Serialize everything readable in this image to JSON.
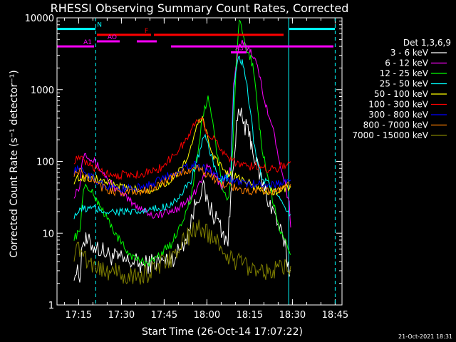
{
  "chart_data": {
    "type": "line",
    "title": "RHESSI Observing Summary Count Rates, Corrected",
    "xlabel": "Start Time (26-Oct-14 17:07:22)",
    "ylabel": "Corrected Count Rate (s⁻¹ detector⁻¹)",
    "x_unit": "minutes after 17:07:22",
    "xlim": [
      0,
      100
    ],
    "ylim": [
      1,
      10000
    ],
    "yscale": "log",
    "x_ticks": [
      {
        "v": 7.6,
        "label": "17:15"
      },
      {
        "v": 22.6,
        "label": "17:30"
      },
      {
        "v": 37.6,
        "label": "17:45"
      },
      {
        "v": 52.6,
        "label": "18:00"
      },
      {
        "v": 67.6,
        "label": "18:15"
      },
      {
        "v": 82.6,
        "label": "18:30"
      },
      {
        "v": 97.6,
        "label": "18:45"
      }
    ],
    "y_ticks": [
      {
        "v": 1,
        "label": "1"
      },
      {
        "v": 10,
        "label": "10"
      },
      {
        "v": 100,
        "label": "100"
      },
      {
        "v": 1000,
        "label": "1000"
      },
      {
        "v": 10000,
        "label": "10000"
      }
    ],
    "legend_title": "Det 1,3,6,9",
    "legend_position": "right",
    "series": [
      {
        "name": "3 - 6 keV",
        "color": "#ffffff",
        "x": [
          6,
          8,
          9,
          12,
          15,
          18,
          21,
          24,
          27,
          30,
          34,
          38,
          42,
          46,
          49,
          51,
          53,
          55,
          57,
          58,
          60,
          61,
          62,
          63,
          64,
          65,
          66,
          67,
          68,
          69,
          70,
          71,
          72,
          74,
          76,
          78,
          80,
          81.5,
          82
        ],
        "y": [
          3,
          2.5,
          8,
          7,
          6,
          5,
          4.5,
          4,
          4,
          3.5,
          4,
          4,
          5,
          10,
          30,
          45,
          25,
          18,
          14,
          10,
          8,
          30,
          120,
          300,
          450,
          400,
          300,
          250,
          200,
          130,
          90,
          70,
          50,
          30,
          20,
          12,
          6,
          3,
          3
        ]
      },
      {
        "name": "6 - 12 keV",
        "color": "#ff00ff",
        "x": [
          6,
          8,
          9,
          10,
          12,
          15,
          18,
          21,
          24,
          27,
          30,
          33,
          36,
          40,
          44,
          47,
          49,
          51,
          53,
          55,
          57,
          58,
          59,
          60,
          61,
          62,
          63,
          64,
          65,
          66,
          67,
          68,
          69,
          70,
          71,
          72,
          74,
          76,
          78,
          80,
          81.5,
          82
        ],
        "y": [
          35,
          45,
          120,
          135,
          110,
          80,
          55,
          40,
          32,
          25,
          22,
          18,
          18,
          20,
          25,
          30,
          40,
          60,
          85,
          65,
          50,
          45,
          60,
          70,
          80,
          1200,
          2500,
          3800,
          4500,
          4000,
          3700,
          3500,
          3000,
          2200,
          1600,
          1000,
          500,
          250,
          110,
          50,
          25,
          12
        ]
      },
      {
        "name": "12 - 25 keV",
        "color": "#00ff00",
        "x": [
          6,
          8,
          9,
          10,
          12,
          15,
          18,
          21,
          24,
          27,
          30,
          33,
          36,
          40,
          44,
          47,
          49,
          51,
          53,
          55,
          56,
          57,
          58,
          59,
          60,
          61,
          62,
          63,
          64,
          65,
          66,
          67,
          68,
          69,
          70,
          71,
          72,
          74,
          76,
          78,
          80,
          81.5,
          82
        ],
        "y": [
          9,
          10,
          35,
          45,
          38,
          25,
          15,
          9,
          6,
          4.5,
          4,
          4,
          5,
          7,
          15,
          30,
          100,
          400,
          800,
          300,
          140,
          80,
          40,
          35,
          30,
          50,
          300,
          3000,
          9000,
          6000,
          4000,
          3300,
          2800,
          1800,
          800,
          300,
          150,
          60,
          25,
          12,
          8,
          5,
          5
        ]
      },
      {
        "name": "25 - 50 keV",
        "color": "#00ffff",
        "x": [
          6,
          8,
          9,
          12,
          15,
          18,
          21,
          24,
          27,
          30,
          33,
          36,
          40,
          44,
          47,
          49,
          51,
          52,
          53,
          55,
          57,
          58,
          59,
          60,
          61,
          62,
          63,
          64,
          65,
          66,
          67,
          68,
          69,
          70,
          72,
          74,
          76,
          78,
          80,
          81.5,
          82
        ],
        "y": [
          18,
          20,
          22,
          22,
          21,
          20,
          20,
          20,
          19,
          20,
          21,
          22,
          26,
          35,
          55,
          100,
          180,
          220,
          160,
          90,
          60,
          55,
          55,
          60,
          70,
          900,
          2200,
          2800,
          2300,
          1500,
          900,
          450,
          200,
          110,
          60,
          50,
          40,
          30,
          20,
          18,
          18
        ]
      },
      {
        "name": "50 - 100 keV",
        "color": "#ffff00",
        "x": [
          6,
          8,
          9,
          12,
          15,
          18,
          21,
          24,
          27,
          30,
          33,
          36,
          40,
          44,
          47,
          49,
          51,
          52,
          53,
          55,
          57,
          59,
          61,
          63,
          65,
          67,
          69,
          71,
          74,
          77,
          80,
          82
        ],
        "y": [
          55,
          60,
          60,
          60,
          55,
          50,
          45,
          42,
          40,
          40,
          40,
          45,
          55,
          80,
          150,
          300,
          450,
          280,
          200,
          120,
          90,
          75,
          65,
          60,
          55,
          50,
          45,
          40,
          38,
          38,
          42,
          45
        ]
      },
      {
        "name": "100 - 300 keV",
        "color": "#ff0000",
        "x": [
          6,
          8,
          10,
          12,
          15,
          18,
          21,
          24,
          27,
          30,
          33,
          36,
          40,
          44,
          47,
          49,
          51,
          52,
          53,
          55,
          57,
          59,
          61,
          63,
          65,
          67,
          69,
          71,
          74,
          77,
          80,
          82
        ],
        "y": [
          105,
          110,
          95,
          85,
          75,
          68,
          65,
          65,
          65,
          68,
          72,
          80,
          110,
          170,
          250,
          400,
          380,
          300,
          250,
          200,
          160,
          130,
          110,
          95,
          90,
          85,
          85,
          85,
          80,
          80,
          90,
          100
        ]
      },
      {
        "name": "300 - 800 keV",
        "color": "#0000ff",
        "x": [
          6,
          8,
          10,
          12,
          15,
          18,
          21,
          24,
          27,
          30,
          33,
          36,
          40,
          44,
          47,
          49,
          51,
          53,
          55,
          57,
          59,
          61,
          63,
          65,
          67,
          69,
          71,
          74,
          77,
          80,
          82
        ],
        "y": [
          75,
          78,
          70,
          60,
          50,
          45,
          42,
          42,
          42,
          44,
          48,
          55,
          65,
          80,
          90,
          88,
          82,
          75,
          68,
          62,
          58,
          55,
          52,
          50,
          48,
          48,
          48,
          48,
          48,
          52,
          55
        ]
      },
      {
        "name": "800 - 7000 keV",
        "color": "#ff8000",
        "x": [
          6,
          8,
          10,
          12,
          15,
          18,
          21,
          24,
          27,
          30,
          33,
          36,
          40,
          44,
          47,
          49,
          51,
          53,
          55,
          57,
          59,
          61,
          63,
          65,
          67,
          69,
          71,
          74,
          77,
          80,
          82
        ],
        "y": [
          70,
          72,
          62,
          55,
          45,
          40,
          38,
          37,
          37,
          38,
          42,
          48,
          58,
          70,
          80,
          78,
          72,
          65,
          58,
          52,
          48,
          45,
          42,
          40,
          38,
          38,
          38,
          38,
          40,
          42,
          48
        ]
      },
      {
        "name": "7000 - 15000 keV",
        "color": "#808000",
        "x": [
          6,
          8,
          10,
          12,
          15,
          18,
          21,
          24,
          27,
          30,
          33,
          36,
          40,
          44,
          47,
          49,
          51,
          53,
          55,
          57,
          59,
          61,
          63,
          65,
          67,
          69,
          71,
          74,
          77,
          80,
          82
        ],
        "y": [
          5.5,
          6,
          4.5,
          4,
          3.2,
          3,
          2.8,
          2.5,
          2.5,
          2.5,
          3,
          3.5,
          4.5,
          7,
          10,
          12,
          11,
          10,
          9,
          7,
          5,
          4.5,
          4,
          4,
          3.5,
          3.5,
          3.2,
          3,
          3,
          3.2,
          3.5
        ]
      }
    ],
    "attenuator_bars": [
      {
        "label": "N",
        "color": "#00ffff",
        "segments": [
          [
            0,
            13.5
          ],
          [
            81.5,
            97.5
          ]
        ],
        "y": 7000
      },
      {
        "label": "F",
        "color": "#ff0000",
        "segments": [
          [
            14,
            33
          ],
          [
            34,
            79.5
          ]
        ],
        "y": 5800
      },
      {
        "label": "AO",
        "color": "#ff00ff",
        "segments": [
          [
            14,
            22
          ],
          [
            28,
            35
          ]
        ],
        "y": 4700
      },
      {
        "label": "A1",
        "color": "#ff00ff",
        "segments": [
          [
            -10,
            13
          ],
          [
            40,
            97
          ]
        ],
        "y": 4000
      },
      {
        "label": "A3",
        "color": "#ff00ff",
        "segments": [
          [
            61,
            66.5
          ]
        ],
        "y": 3300
      }
    ],
    "vertical_markers": [
      {
        "x": 13.6,
        "color": "#00ffff",
        "style": "dashed"
      },
      {
        "x": 81.3,
        "color": "#00ffff",
        "style": "solid"
      },
      {
        "x": 97.6,
        "color": "#00ffff",
        "style": "dashed"
      }
    ],
    "footer_timestamp": "21-Oct-2021 18:31"
  }
}
